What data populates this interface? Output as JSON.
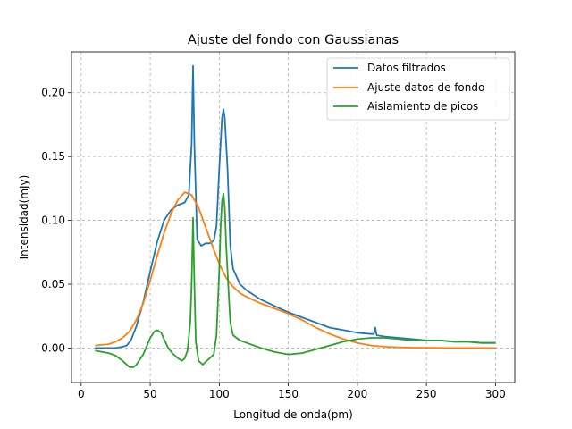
{
  "chart_data": {
    "type": "line",
    "title": "Ajuste del fondo con Gaussianas",
    "xlabel": "Longitud de onda(pm)",
    "ylabel": "Intensidad(mJy)",
    "xlim": [
      -7,
      314
    ],
    "ylim": [
      -0.027,
      0.232
    ],
    "x_ticks": [
      0,
      50,
      100,
      150,
      200,
      250,
      300
    ],
    "y_ticks": [
      0.0,
      0.05,
      0.1,
      0.15,
      0.2
    ],
    "x_tick_labels": [
      "0",
      "50",
      "100",
      "150",
      "200",
      "250",
      "300"
    ],
    "y_tick_labels": [
      "0.00",
      "0.05",
      "0.10",
      "0.15",
      "0.20"
    ],
    "grid": true,
    "legend_position": "top-right",
    "series": [
      {
        "name": "Datos filtrados",
        "color": "#1f77b4",
        "x": [
          10,
          20,
          25,
          30,
          33,
          36,
          40,
          45,
          50,
          55,
          60,
          65,
          70,
          75,
          78,
          80,
          81,
          82,
          84,
          87,
          90,
          93,
          96,
          98,
          100,
          102,
          103,
          104,
          106,
          108,
          110,
          115,
          120,
          130,
          140,
          150,
          160,
          170,
          180,
          190,
          200,
          210,
          212,
          213,
          214,
          220,
          230,
          240,
          250,
          260,
          270,
          280,
          290,
          300
        ],
        "y": [
          0.0,
          0.0,
          0.0,
          0.001,
          0.002,
          0.006,
          0.017,
          0.036,
          0.06,
          0.083,
          0.1,
          0.108,
          0.112,
          0.114,
          0.12,
          0.16,
          0.221,
          0.16,
          0.085,
          0.08,
          0.082,
          0.082,
          0.084,
          0.095,
          0.14,
          0.18,
          0.187,
          0.18,
          0.14,
          0.08,
          0.062,
          0.05,
          0.045,
          0.038,
          0.033,
          0.028,
          0.024,
          0.02,
          0.016,
          0.014,
          0.012,
          0.011,
          0.011,
          0.016,
          0.01,
          0.009,
          0.008,
          0.007,
          0.006,
          0.006,
          0.005,
          0.005,
          0.004,
          0.004
        ]
      },
      {
        "name": "Ajuste datos de fondo",
        "color": "#ff7f0e",
        "x": [
          10,
          20,
          25,
          30,
          35,
          40,
          45,
          50,
          55,
          60,
          65,
          70,
          75,
          80,
          85,
          90,
          95,
          100,
          105,
          110,
          115,
          120,
          130,
          140,
          150,
          160,
          170,
          180,
          190,
          200,
          210,
          220,
          230,
          240,
          250,
          260,
          270,
          280,
          290,
          300
        ],
        "y": [
          0.002,
          0.003,
          0.005,
          0.008,
          0.013,
          0.022,
          0.035,
          0.053,
          0.072,
          0.09,
          0.105,
          0.116,
          0.122,
          0.12,
          0.11,
          0.095,
          0.08,
          0.066,
          0.055,
          0.048,
          0.043,
          0.04,
          0.035,
          0.031,
          0.027,
          0.022,
          0.016,
          0.011,
          0.007,
          0.004,
          0.002,
          0.001,
          0.0005,
          0.0003,
          0.0002,
          0.0001,
          0.0,
          0.0,
          0.0,
          0.0
        ]
      },
      {
        "name": "Aislamiento de picos",
        "color": "#2ca02c",
        "x": [
          10,
          15,
          20,
          25,
          30,
          35,
          38,
          40,
          45,
          50,
          53,
          55,
          58,
          60,
          63,
          66,
          70,
          73,
          75,
          77,
          79,
          80,
          81,
          82,
          83,
          85,
          88,
          90,
          93,
          96,
          98,
          100,
          101,
          102,
          103,
          104,
          105,
          107,
          108,
          110,
          115,
          120,
          130,
          140,
          150,
          160,
          170,
          180,
          190,
          200,
          210,
          220,
          230,
          240,
          250,
          260,
          270,
          280,
          290,
          300
        ],
        "y": [
          -0.002,
          -0.003,
          -0.004,
          -0.006,
          -0.01,
          -0.015,
          -0.015,
          -0.013,
          -0.005,
          0.008,
          0.013,
          0.014,
          0.012,
          0.007,
          0.0,
          -0.004,
          -0.008,
          -0.01,
          -0.008,
          -0.002,
          0.02,
          0.05,
          0.102,
          0.05,
          0.005,
          -0.01,
          -0.013,
          -0.011,
          -0.008,
          -0.005,
          0.01,
          0.06,
          0.095,
          0.115,
          0.121,
          0.11,
          0.08,
          0.04,
          0.02,
          0.01,
          0.006,
          0.004,
          0.0,
          -0.003,
          -0.005,
          -0.004,
          -0.001,
          0.002,
          0.005,
          0.007,
          0.008,
          0.008,
          0.007,
          0.006,
          0.006,
          0.006,
          0.005,
          0.005,
          0.004,
          0.004
        ]
      }
    ]
  }
}
